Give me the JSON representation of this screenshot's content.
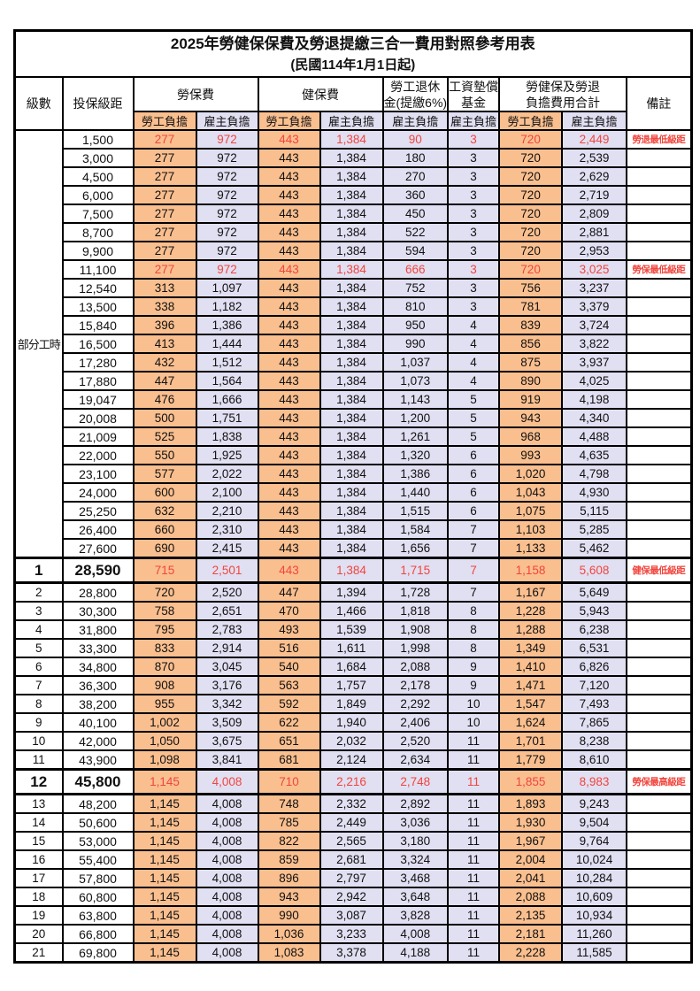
{
  "title": "2025年勞健保保費及勞退提繳三合一費用對照參考用表",
  "subtitle": "(民國114年1月1日起)",
  "header": {
    "level": "級數",
    "bracket": "投保級距",
    "labor_insurance": "勞保費",
    "health_insurance": "健保費",
    "pension_lines": [
      "勞工退休",
      "金(提繳6%)"
    ],
    "wage_fund_lines": [
      "工資墊償",
      "基金"
    ],
    "total_lines": [
      "勞健保及勞退",
      "負擔費用合計"
    ],
    "employee": "勞工負擔",
    "employer": "雇主負擔",
    "note": "備註"
  },
  "part_time_label": "部分工時",
  "part_time_rowspan": 23,
  "colors": {
    "employee_bg": "#FABF8F",
    "employer_bg": "#E1DFF2",
    "highlight_red": "#F1453D"
  },
  "rows": [
    {
      "level": null,
      "bracket": "1,500",
      "values": [
        "277",
        "972",
        "443",
        "1,384",
        "90",
        "3",
        "720",
        "2,449"
      ],
      "note": "勞退最低級距",
      "red": true,
      "big": false
    },
    {
      "level": null,
      "bracket": "3,000",
      "values": [
        "277",
        "972",
        "443",
        "1,384",
        "180",
        "3",
        "720",
        "2,539"
      ],
      "note": "",
      "red": false,
      "big": false
    },
    {
      "level": null,
      "bracket": "4,500",
      "values": [
        "277",
        "972",
        "443",
        "1,384",
        "270",
        "3",
        "720",
        "2,629"
      ],
      "note": "",
      "red": false,
      "big": false
    },
    {
      "level": null,
      "bracket": "6,000",
      "values": [
        "277",
        "972",
        "443",
        "1,384",
        "360",
        "3",
        "720",
        "2,719"
      ],
      "note": "",
      "red": false,
      "big": false
    },
    {
      "level": null,
      "bracket": "7,500",
      "values": [
        "277",
        "972",
        "443",
        "1,384",
        "450",
        "3",
        "720",
        "2,809"
      ],
      "note": "",
      "red": false,
      "big": false
    },
    {
      "level": null,
      "bracket": "8,700",
      "values": [
        "277",
        "972",
        "443",
        "1,384",
        "522",
        "3",
        "720",
        "2,881"
      ],
      "note": "",
      "red": false,
      "big": false
    },
    {
      "level": null,
      "bracket": "9,900",
      "values": [
        "277",
        "972",
        "443",
        "1,384",
        "594",
        "3",
        "720",
        "2,953"
      ],
      "note": "",
      "red": false,
      "big": false
    },
    {
      "level": null,
      "bracket": "11,100",
      "values": [
        "277",
        "972",
        "443",
        "1,384",
        "666",
        "3",
        "720",
        "3,025"
      ],
      "note": "勞保最低級距",
      "red": true,
      "big": false
    },
    {
      "level": null,
      "bracket": "12,540",
      "values": [
        "313",
        "1,097",
        "443",
        "1,384",
        "752",
        "3",
        "756",
        "3,237"
      ],
      "note": "",
      "red": false,
      "big": false
    },
    {
      "level": null,
      "bracket": "13,500",
      "values": [
        "338",
        "1,182",
        "443",
        "1,384",
        "810",
        "3",
        "781",
        "3,379"
      ],
      "note": "",
      "red": false,
      "big": false
    },
    {
      "level": null,
      "bracket": "15,840",
      "values": [
        "396",
        "1,386",
        "443",
        "1,384",
        "950",
        "4",
        "839",
        "3,724"
      ],
      "note": "",
      "red": false,
      "big": false
    },
    {
      "level": null,
      "bracket": "16,500",
      "values": [
        "413",
        "1,444",
        "443",
        "1,384",
        "990",
        "4",
        "856",
        "3,822"
      ],
      "note": "",
      "red": false,
      "big": false
    },
    {
      "level": null,
      "bracket": "17,280",
      "values": [
        "432",
        "1,512",
        "443",
        "1,384",
        "1,037",
        "4",
        "875",
        "3,937"
      ],
      "note": "",
      "red": false,
      "big": false
    },
    {
      "level": null,
      "bracket": "17,880",
      "values": [
        "447",
        "1,564",
        "443",
        "1,384",
        "1,073",
        "4",
        "890",
        "4,025"
      ],
      "note": "",
      "red": false,
      "big": false
    },
    {
      "level": null,
      "bracket": "19,047",
      "values": [
        "476",
        "1,666",
        "443",
        "1,384",
        "1,143",
        "5",
        "919",
        "4,198"
      ],
      "note": "",
      "red": false,
      "big": false
    },
    {
      "level": null,
      "bracket": "20,008",
      "values": [
        "500",
        "1,751",
        "443",
        "1,384",
        "1,200",
        "5",
        "943",
        "4,340"
      ],
      "note": "",
      "red": false,
      "big": false
    },
    {
      "level": null,
      "bracket": "21,009",
      "values": [
        "525",
        "1,838",
        "443",
        "1,384",
        "1,261",
        "5",
        "968",
        "4,488"
      ],
      "note": "",
      "red": false,
      "big": false
    },
    {
      "level": null,
      "bracket": "22,000",
      "values": [
        "550",
        "1,925",
        "443",
        "1,384",
        "1,320",
        "6",
        "993",
        "4,635"
      ],
      "note": "",
      "red": false,
      "big": false
    },
    {
      "level": null,
      "bracket": "23,100",
      "values": [
        "577",
        "2,022",
        "443",
        "1,384",
        "1,386",
        "6",
        "1,020",
        "4,798"
      ],
      "note": "",
      "red": false,
      "big": false
    },
    {
      "level": null,
      "bracket": "24,000",
      "values": [
        "600",
        "2,100",
        "443",
        "1,384",
        "1,440",
        "6",
        "1,043",
        "4,930"
      ],
      "note": "",
      "red": false,
      "big": false
    },
    {
      "level": null,
      "bracket": "25,250",
      "values": [
        "632",
        "2,210",
        "443",
        "1,384",
        "1,515",
        "6",
        "1,075",
        "5,115"
      ],
      "note": "",
      "red": false,
      "big": false
    },
    {
      "level": null,
      "bracket": "26,400",
      "values": [
        "660",
        "2,310",
        "443",
        "1,384",
        "1,584",
        "7",
        "1,103",
        "5,285"
      ],
      "note": "",
      "red": false,
      "big": false
    },
    {
      "level": null,
      "bracket": "27,600",
      "values": [
        "690",
        "2,415",
        "443",
        "1,384",
        "1,656",
        "7",
        "1,133",
        "5,462"
      ],
      "note": "",
      "red": false,
      "big": false
    },
    {
      "level": "1",
      "bracket": "28,590",
      "values": [
        "715",
        "2,501",
        "443",
        "1,384",
        "1,715",
        "7",
        "1,158",
        "5,608"
      ],
      "note": "健保最低級距",
      "red": true,
      "big": true
    },
    {
      "level": "2",
      "bracket": "28,800",
      "values": [
        "720",
        "2,520",
        "447",
        "1,394",
        "1,728",
        "7",
        "1,167",
        "5,649"
      ],
      "note": "",
      "red": false,
      "big": false
    },
    {
      "level": "3",
      "bracket": "30,300",
      "values": [
        "758",
        "2,651",
        "470",
        "1,466",
        "1,818",
        "8",
        "1,228",
        "5,943"
      ],
      "note": "",
      "red": false,
      "big": false
    },
    {
      "level": "4",
      "bracket": "31,800",
      "values": [
        "795",
        "2,783",
        "493",
        "1,539",
        "1,908",
        "8",
        "1,288",
        "6,238"
      ],
      "note": "",
      "red": false,
      "big": false
    },
    {
      "level": "5",
      "bracket": "33,300",
      "values": [
        "833",
        "2,914",
        "516",
        "1,611",
        "1,998",
        "8",
        "1,349",
        "6,531"
      ],
      "note": "",
      "red": false,
      "big": false
    },
    {
      "level": "6",
      "bracket": "34,800",
      "values": [
        "870",
        "3,045",
        "540",
        "1,684",
        "2,088",
        "9",
        "1,410",
        "6,826"
      ],
      "note": "",
      "red": false,
      "big": false
    },
    {
      "level": "7",
      "bracket": "36,300",
      "values": [
        "908",
        "3,176",
        "563",
        "1,757",
        "2,178",
        "9",
        "1,471",
        "7,120"
      ],
      "note": "",
      "red": false,
      "big": false
    },
    {
      "level": "8",
      "bracket": "38,200",
      "values": [
        "955",
        "3,342",
        "592",
        "1,849",
        "2,292",
        "10",
        "1,547",
        "7,493"
      ],
      "note": "",
      "red": false,
      "big": false
    },
    {
      "level": "9",
      "bracket": "40,100",
      "values": [
        "1,002",
        "3,509",
        "622",
        "1,940",
        "2,406",
        "10",
        "1,624",
        "7,865"
      ],
      "note": "",
      "red": false,
      "big": false
    },
    {
      "level": "10",
      "bracket": "42,000",
      "values": [
        "1,050",
        "3,675",
        "651",
        "2,032",
        "2,520",
        "11",
        "1,701",
        "8,238"
      ],
      "note": "",
      "red": false,
      "big": false
    },
    {
      "level": "11",
      "bracket": "43,900",
      "values": [
        "1,098",
        "3,841",
        "681",
        "2,124",
        "2,634",
        "11",
        "1,779",
        "8,610"
      ],
      "note": "",
      "red": false,
      "big": false
    },
    {
      "level": "12",
      "bracket": "45,800",
      "values": [
        "1,145",
        "4,008",
        "710",
        "2,216",
        "2,748",
        "11",
        "1,855",
        "8,983"
      ],
      "note": "勞保最高級距",
      "red": true,
      "big": true
    },
    {
      "level": "13",
      "bracket": "48,200",
      "values": [
        "1,145",
        "4,008",
        "748",
        "2,332",
        "2,892",
        "11",
        "1,893",
        "9,243"
      ],
      "note": "",
      "red": false,
      "big": false
    },
    {
      "level": "14",
      "bracket": "50,600",
      "values": [
        "1,145",
        "4,008",
        "785",
        "2,449",
        "3,036",
        "11",
        "1,930",
        "9,504"
      ],
      "note": "",
      "red": false,
      "big": false
    },
    {
      "level": "15",
      "bracket": "53,000",
      "values": [
        "1,145",
        "4,008",
        "822",
        "2,565",
        "3,180",
        "11",
        "1,967",
        "9,764"
      ],
      "note": "",
      "red": false,
      "big": false
    },
    {
      "level": "16",
      "bracket": "55,400",
      "values": [
        "1,145",
        "4,008",
        "859",
        "2,681",
        "3,324",
        "11",
        "2,004",
        "10,024"
      ],
      "note": "",
      "red": false,
      "big": false
    },
    {
      "level": "17",
      "bracket": "57,800",
      "values": [
        "1,145",
        "4,008",
        "896",
        "2,797",
        "3,468",
        "11",
        "2,041",
        "10,284"
      ],
      "note": "",
      "red": false,
      "big": false
    },
    {
      "level": "18",
      "bracket": "60,800",
      "values": [
        "1,145",
        "4,008",
        "943",
        "2,942",
        "3,648",
        "11",
        "2,088",
        "10,609"
      ],
      "note": "",
      "red": false,
      "big": false
    },
    {
      "level": "19",
      "bracket": "63,800",
      "values": [
        "1,145",
        "4,008",
        "990",
        "3,087",
        "3,828",
        "11",
        "2,135",
        "10,934"
      ],
      "note": "",
      "red": false,
      "big": false
    },
    {
      "level": "20",
      "bracket": "66,800",
      "values": [
        "1,145",
        "4,008",
        "1,036",
        "3,233",
        "4,008",
        "11",
        "2,181",
        "11,260"
      ],
      "note": "",
      "red": false,
      "big": false
    },
    {
      "level": "21",
      "bracket": "69,800",
      "values": [
        "1,145",
        "4,008",
        "1,083",
        "3,378",
        "4,188",
        "11",
        "2,228",
        "11,585"
      ],
      "note": "",
      "red": false,
      "big": false
    }
  ]
}
